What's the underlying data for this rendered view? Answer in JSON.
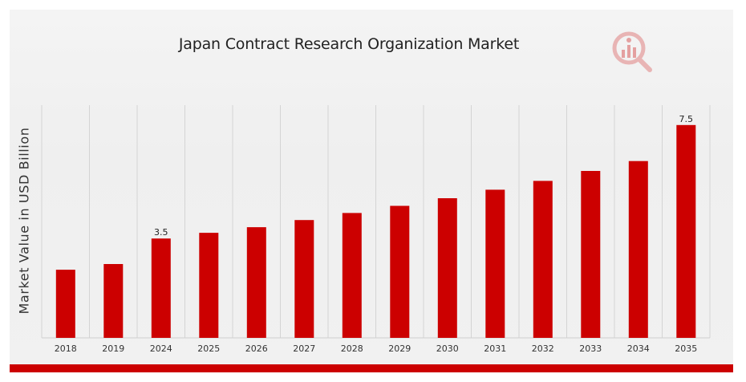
{
  "chart_data": {
    "type": "bar",
    "title": "Japan Contract Research Organization Market",
    "xlabel": "",
    "ylabel": "Market Value in USD Billion",
    "categories": [
      "2018",
      "2019",
      "2024",
      "2025",
      "2026",
      "2027",
      "2028",
      "2029",
      "2030",
      "2031",
      "2032",
      "2033",
      "2034",
      "2035"
    ],
    "values": [
      2.4,
      2.6,
      3.5,
      3.7,
      3.9,
      4.15,
      4.4,
      4.65,
      4.92,
      5.22,
      5.53,
      5.88,
      6.23,
      7.5
    ],
    "data_labels": [
      {
        "category": "2024",
        "text": "3.5"
      },
      {
        "category": "2035",
        "text": "7.5"
      }
    ],
    "ylim": [
      0,
      8.2
    ],
    "grid": "vertical",
    "bar_color": "#cc0000"
  },
  "colors": {
    "accent": "#cc0000",
    "gridline": "#d4d4d4"
  },
  "icons": {
    "logo": "magnifier-bar-chart-icon"
  }
}
